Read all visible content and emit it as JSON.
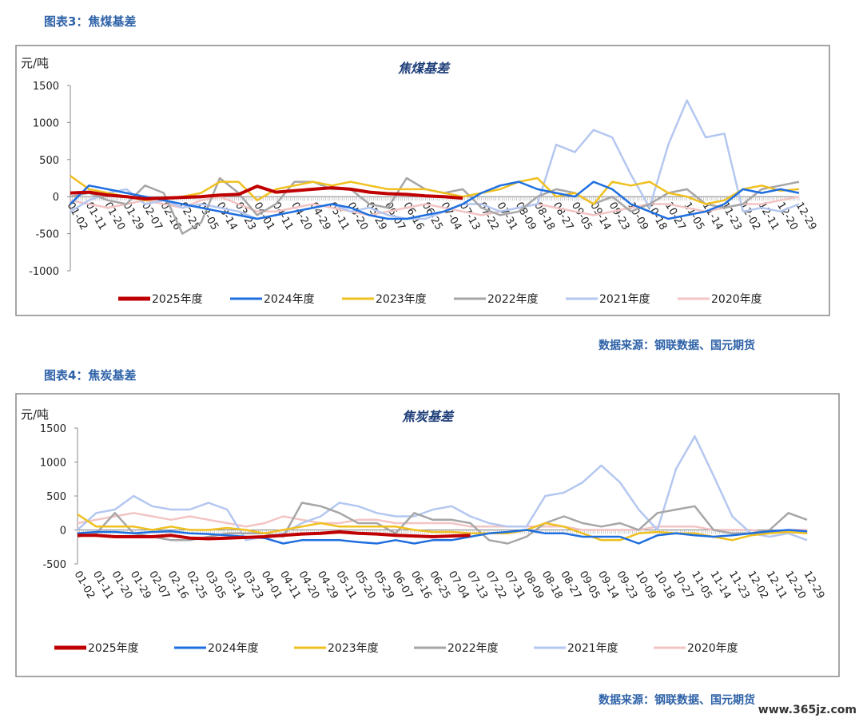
{
  "chart_data": [
    {
      "type": "line",
      "caption": "图表3：焦煤基差",
      "title": "焦煤基差",
      "y_label": "元/吨",
      "source": "数据来源：钢联数据、国元期货",
      "categories": [
        "01-02",
        "01-11",
        "01-20",
        "01-29",
        "02-07",
        "02-16",
        "02-25",
        "03-05",
        "03-14",
        "03-23",
        "04-01",
        "04-11",
        "04-20",
        "04-29",
        "05-11",
        "05-20",
        "05-29",
        "06-07",
        "06-16",
        "06-25",
        "07-04",
        "07-13",
        "07-22",
        "07-31",
        "08-09",
        "08-18",
        "08-27",
        "09-05",
        "09-14",
        "09-23",
        "10-09",
        "10-18",
        "10-27",
        "11-05",
        "11-14",
        "11-23",
        "12-02",
        "12-11",
        "12-20",
        "12-29"
      ],
      "ylim": [
        -1000,
        1500
      ],
      "yticks": [
        1500,
        1000,
        500,
        0,
        -500,
        -1000
      ],
      "series": [
        {
          "name": "2025年度",
          "color": "#c00000",
          "values": [
            50,
            60,
            20,
            0,
            -30,
            -20,
            -10,
            0,
            20,
            30,
            140,
            60,
            80,
            100,
            120,
            100,
            60,
            40,
            30,
            10,
            0,
            -20,
            null,
            null,
            null,
            null,
            null,
            null,
            null,
            null,
            null,
            null,
            null,
            null,
            null,
            null,
            null,
            null,
            null,
            null
          ]
        },
        {
          "name": "2024年度",
          "color": "#1f6fe0",
          "values": [
            -100,
            150,
            100,
            50,
            0,
            -50,
            -100,
            -150,
            -200,
            -250,
            -300,
            -250,
            -200,
            -150,
            -100,
            -150,
            -250,
            -300,
            -300,
            -250,
            -200,
            -100,
            50,
            150,
            200,
            100,
            50,
            0,
            200,
            100,
            -100,
            -200,
            -300,
            -250,
            -200,
            -100,
            100,
            50,
            100,
            50
          ]
        },
        {
          "name": "2023年度",
          "color": "#f0c020",
          "values": [
            280,
            100,
            50,
            0,
            -50,
            -20,
            0,
            50,
            200,
            200,
            -50,
            100,
            150,
            200,
            150,
            200,
            150,
            100,
            100,
            100,
            50,
            0,
            50,
            100,
            200,
            250,
            0,
            50,
            -100,
            200,
            150,
            200,
            50,
            0,
            -100,
            -50,
            100,
            150,
            80,
            100
          ]
        },
        {
          "name": "2022年度",
          "color": "#a6a6a6",
          "values": [
            0,
            50,
            -50,
            -100,
            150,
            50,
            -500,
            -350,
            250,
            50,
            -250,
            -100,
            200,
            200,
            100,
            100,
            -100,
            -150,
            250,
            100,
            50,
            100,
            -150,
            -250,
            -200,
            0,
            100,
            50,
            -100,
            0,
            -200,
            -100,
            50,
            100,
            -100,
            -150,
            -100,
            100,
            150,
            200
          ]
        },
        {
          "name": "2021年度",
          "color": "#b4c7f0",
          "values": [
            -200,
            -50,
            50,
            100,
            -100,
            -50,
            -150,
            -100,
            -150,
            -200,
            -300,
            -250,
            -200,
            -150,
            -100,
            -200,
            -150,
            -250,
            -300,
            -300,
            -200,
            -100,
            -100,
            -200,
            -150,
            -100,
            700,
            600,
            900,
            800,
            300,
            -150,
            700,
            1300,
            800,
            850,
            -200,
            -150,
            -200,
            -100
          ]
        },
        {
          "name": "2020年度",
          "color": "#f2c4c4",
          "values": [
            -50,
            -100,
            -150,
            -100,
            -50,
            -100,
            -150,
            -50,
            0,
            -100,
            -200,
            -200,
            -150,
            -100,
            -150,
            -200,
            -250,
            -200,
            -150,
            -100,
            -150,
            -200,
            -250,
            -200,
            -150,
            -100,
            -150,
            -200,
            -250,
            -200,
            -150,
            -100,
            -100,
            -150,
            -200,
            -150,
            -100,
            -100,
            -50,
            0
          ]
        }
      ]
    },
    {
      "type": "line",
      "caption": "图表4：焦炭基差",
      "title": "焦炭基差",
      "y_label": "元/吨",
      "source": "数据来源：钢联数据、国元期货",
      "categories": [
        "01-02",
        "01-11",
        "01-20",
        "01-29",
        "02-07",
        "02-16",
        "02-25",
        "03-05",
        "03-14",
        "03-23",
        "04-01",
        "04-11",
        "04-20",
        "04-29",
        "05-11",
        "05-20",
        "05-29",
        "06-07",
        "06-16",
        "06-25",
        "07-04",
        "07-13",
        "07-22",
        "07-31",
        "08-09",
        "08-18",
        "08-27",
        "09-05",
        "09-14",
        "09-23",
        "10-09",
        "10-18",
        "10-27",
        "11-05",
        "11-14",
        "11-23",
        "12-02",
        "12-11",
        "12-20",
        "12-29"
      ],
      "ylim": [
        -500,
        1500
      ],
      "yticks": [
        1500,
        1000,
        500,
        0,
        -500
      ],
      "series": [
        {
          "name": "2025年度",
          "color": "#c00000",
          "values": [
            -80,
            -80,
            -100,
            -100,
            -100,
            -80,
            -120,
            -130,
            -120,
            -110,
            -100,
            -80,
            -60,
            -50,
            -30,
            -50,
            -60,
            -80,
            -90,
            -100,
            -90,
            -80,
            null,
            null,
            null,
            null,
            null,
            null,
            null,
            null,
            null,
            null,
            null,
            null,
            null,
            null,
            null,
            null,
            null,
            null
          ]
        },
        {
          "name": "2024年度",
          "color": "#1f6fe0",
          "values": [
            -50,
            -30,
            -30,
            -50,
            -30,
            -20,
            -50,
            -60,
            -80,
            -100,
            -120,
            -200,
            -150,
            -150,
            -150,
            -180,
            -200,
            -150,
            -200,
            -150,
            -150,
            -100,
            -50,
            -30,
            0,
            -50,
            -50,
            -100,
            -100,
            -100,
            -200,
            -80,
            -50,
            -80,
            -100,
            -80,
            -50,
            -20,
            0,
            -20
          ]
        },
        {
          "name": "2023年度",
          "color": "#f0c020",
          "values": [
            230,
            50,
            50,
            50,
            0,
            50,
            0,
            0,
            30,
            0,
            -50,
            0,
            50,
            100,
            50,
            50,
            50,
            50,
            0,
            -30,
            -30,
            -50,
            -50,
            -50,
            0,
            100,
            50,
            -50,
            -150,
            -150,
            -50,
            -30,
            -50,
            -50,
            -100,
            -150,
            -80,
            -50,
            -30,
            -50
          ]
        },
        {
          "name": "2022年度",
          "color": "#a6a6a6",
          "values": [
            -100,
            -50,
            250,
            -50,
            -100,
            -150,
            -150,
            -100,
            -50,
            -50,
            -50,
            -100,
            400,
            350,
            250,
            100,
            100,
            -50,
            250,
            150,
            150,
            100,
            -150,
            -200,
            -100,
            100,
            200,
            100,
            50,
            100,
            0,
            250,
            300,
            350,
            0,
            -50,
            -50,
            0,
            250,
            150
          ]
        },
        {
          "name": "2021年度",
          "color": "#b4c7f0",
          "values": [
            0,
            250,
            300,
            500,
            350,
            300,
            300,
            400,
            300,
            -150,
            -100,
            -50,
            100,
            200,
            400,
            350,
            250,
            200,
            200,
            300,
            350,
            200,
            100,
            50,
            50,
            500,
            550,
            700,
            950,
            700,
            300,
            0,
            900,
            1380,
            800,
            200,
            -50,
            -100,
            -50,
            -150
          ]
        },
        {
          "name": "2020年度",
          "color": "#f2c4c4",
          "values": [
            100,
            150,
            200,
            250,
            200,
            150,
            200,
            150,
            100,
            50,
            100,
            200,
            150,
            100,
            100,
            150,
            150,
            100,
            100,
            100,
            100,
            50,
            50,
            50,
            50,
            50,
            50,
            0,
            0,
            0,
            0,
            50,
            50,
            50,
            0,
            0,
            0,
            -50,
            0,
            0
          ]
        }
      ]
    }
  ],
  "watermark": "www.365jz.com"
}
